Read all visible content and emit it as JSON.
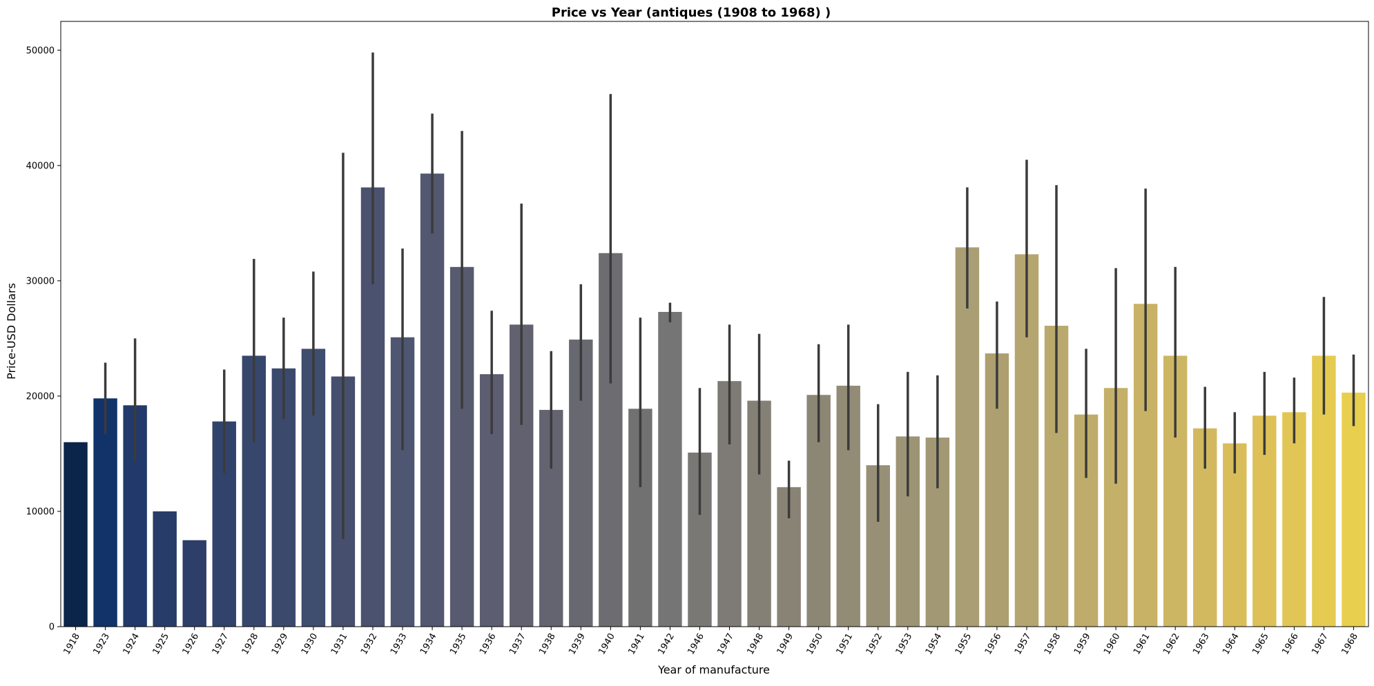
{
  "chart_data": {
    "type": "bar",
    "title": "Price vs Year (antiques (1908 to 1968) )",
    "xlabel": "Year of manufacture",
    "ylabel": "Price-USD Dollars",
    "ylim": [
      0,
      52500
    ],
    "yticks": [
      0,
      10000,
      20000,
      30000,
      40000,
      50000
    ],
    "grid": false,
    "legend": "none",
    "palette": "cividis",
    "categories": [
      "1918",
      "1923",
      "1924",
      "1925",
      "1926",
      "1927",
      "1928",
      "1929",
      "1930",
      "1931",
      "1932",
      "1933",
      "1934",
      "1935",
      "1936",
      "1937",
      "1938",
      "1939",
      "1940",
      "1941",
      "1942",
      "1946",
      "1947",
      "1948",
      "1949",
      "1950",
      "1951",
      "1952",
      "1953",
      "1954",
      "1955",
      "1956",
      "1957",
      "1958",
      "1959",
      "1960",
      "1961",
      "1962",
      "1963",
      "1964",
      "1965",
      "1966",
      "1967",
      "1968"
    ],
    "values": [
      16000,
      19800,
      19200,
      10000,
      7500,
      17800,
      23500,
      22400,
      24100,
      21700,
      38100,
      25100,
      39300,
      31200,
      21900,
      26200,
      18800,
      24900,
      32400,
      18900,
      27300,
      15100,
      21300,
      19600,
      12100,
      20100,
      20900,
      14000,
      16500,
      16400,
      32900,
      23700,
      32300,
      26100,
      18400,
      20700,
      28000,
      23500,
      17200,
      15900,
      18300,
      18600,
      23500,
      20300
    ],
    "error_low": [
      null,
      16700,
      14300,
      null,
      null,
      13300,
      16000,
      18000,
      18300,
      7600,
      29700,
      15300,
      34100,
      18900,
      16700,
      17500,
      13700,
      19600,
      21100,
      12100,
      26400,
      9700,
      15800,
      13200,
      9400,
      16000,
      15300,
      9100,
      11300,
      12000,
      27600,
      18900,
      25100,
      16800,
      12900,
      12400,
      18700,
      16400,
      13700,
      13300,
      14900,
      15900,
      18400,
      17400
    ],
    "error_high": [
      null,
      22900,
      25000,
      null,
      null,
      22300,
      31900,
      26800,
      30800,
      41100,
      49800,
      32800,
      44500,
      43000,
      27400,
      36700,
      23900,
      29700,
      46200,
      26800,
      28100,
      20700,
      26200,
      25400,
      14400,
      24500,
      26200,
      19300,
      22100,
      21800,
      38100,
      28200,
      40500,
      38300,
      24100,
      31100,
      38000,
      31200,
      20800,
      18600,
      22100,
      21600,
      28600,
      23600
    ],
    "bar_colors": [
      "#0b2449",
      "#12336a",
      "#213a6b",
      "#283c6a",
      "#2d3f69",
      "#31436b",
      "#37476c",
      "#3b4a6c",
      "#3f4d6e",
      "#464f6e",
      "#4b526f",
      "#4f5671",
      "#535870",
      "#585a6f",
      "#5c5d71",
      "#616170",
      "#646470",
      "#686970",
      "#6d6c70",
      "#717171",
      "#767575",
      "#7a7875",
      "#7e7b76",
      "#848075",
      "#898376",
      "#8c8675",
      "#928c76",
      "#978f76",
      "#9d9475",
      "#a29874",
      "#aa9e74",
      "#ae9f70",
      "#b5a570",
      "#baa96d",
      "#bfac6a",
      "#c5b069",
      "#c8b265",
      "#cdb663",
      "#d2b95f",
      "#d8bd5a",
      "#ddc158",
      "#e1c656",
      "#e5cb51",
      "#e8cf4d"
    ]
  }
}
